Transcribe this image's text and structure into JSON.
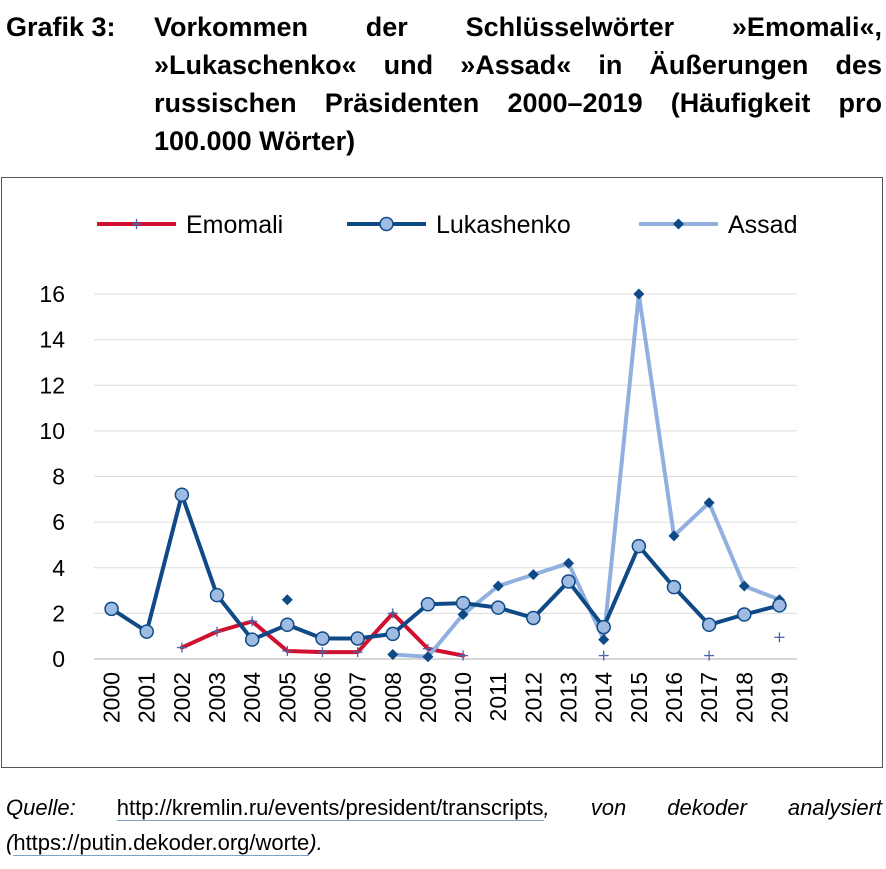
{
  "caption": {
    "label": "Grafik 3:",
    "text": "Vorkommen der Schlüsselwörter »Emomali«, »Lukaschenko« und »Assad« in Äußerungen des russischen Präsidenten 2000–2019 (Häufigkeit pro 100.000 Wörter)"
  },
  "source": {
    "label": "Quelle:",
    "url1": "http://kremlin.ru/events/president/transcripts",
    "mid": ", von dekoder analysiert (",
    "url2": "https://putin.dekoder.org/worte",
    "end": ")."
  },
  "chart_data": {
    "type": "line",
    "categories": [
      "2000",
      "2001",
      "2002",
      "2003",
      "2004",
      "2005",
      "2006",
      "2007",
      "2008",
      "2009",
      "2010",
      "2011",
      "2012",
      "2013",
      "2014",
      "2015",
      "2016",
      "2017",
      "2018",
      "2019"
    ],
    "ylim": [
      0,
      16
    ],
    "yticks": [
      0,
      2,
      4,
      6,
      8,
      10,
      12,
      14,
      16
    ],
    "grid": true,
    "legend_position": "top",
    "series": [
      {
        "name": "Emomali",
        "color": "#d0102e",
        "marker": "plus",
        "values": [
          null,
          null,
          0.5,
          1.2,
          1.65,
          0.35,
          0.3,
          0.3,
          2.0,
          0.45,
          0.15,
          null,
          null,
          null,
          0.15,
          null,
          null,
          0.15,
          null,
          0.95
        ]
      },
      {
        "name": "Lukashenko",
        "color": "#0f4a87",
        "marker": "circle",
        "marker_fill": "#9fbbe2",
        "values": [
          2.2,
          1.2,
          7.2,
          2.8,
          0.85,
          1.5,
          0.9,
          0.9,
          1.1,
          2.4,
          2.45,
          2.25,
          1.8,
          3.4,
          1.4,
          4.95,
          3.15,
          1.5,
          1.95,
          2.35
        ]
      },
      {
        "name": "Assad",
        "color": "#90b0df",
        "marker": "diamond",
        "marker_fill": "#0f4a87",
        "values": [
          null,
          null,
          null,
          null,
          null,
          2.6,
          null,
          null,
          0.2,
          0.1,
          1.95,
          3.2,
          3.7,
          4.2,
          0.85,
          16.0,
          5.4,
          6.85,
          3.2,
          2.6
        ]
      }
    ]
  }
}
